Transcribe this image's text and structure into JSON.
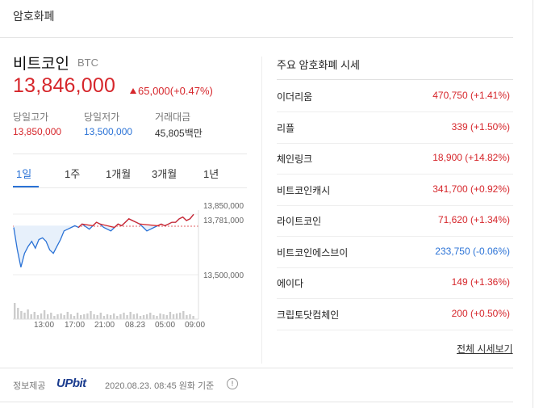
{
  "header": {
    "title": "암호화폐"
  },
  "coin": {
    "name": "비트코인",
    "symbol": "BTC",
    "price": "13,846,000",
    "change": "65,000(+0.47%)",
    "high_label": "당일고가",
    "high_value": "13,850,000",
    "low_label": "당일저가",
    "low_value": "13,500,000",
    "volume_label": "거래대금",
    "volume_value": "45,805백만"
  },
  "tabs": [
    "1일",
    "1주",
    "1개월",
    "3개월",
    "1년"
  ],
  "chart_data": {
    "type": "line",
    "y_ticks": [
      "13,850,000",
      "13,781,000",
      "13,500,000"
    ],
    "x_ticks": [
      "13:00",
      "17:00",
      "21:00",
      "08.23",
      "05:00",
      "09:00"
    ],
    "reference_line": 13781000,
    "ylim": [
      13450000,
      13880000
    ],
    "values": [
      13770000,
      13640000,
      13540000,
      13620000,
      13660000,
      13690000,
      13650000,
      13700000,
      13710000,
      13690000,
      13640000,
      13620000,
      13660000,
      13700000,
      13750000,
      13760000,
      13770000,
      13780000,
      13770000,
      13790000,
      13775000,
      13760000,
      13780000,
      13800000,
      13790000,
      13770000,
      13760000,
      13750000,
      13770000,
      13790000,
      13780000,
      13800000,
      13820000,
      13810000,
      13800000,
      13790000,
      13770000,
      13750000,
      13760000,
      13770000,
      13780000,
      13790000,
      13780000,
      13790000,
      13800000,
      13800000,
      13820000,
      13830000,
      13810000,
      13820000,
      13846000
    ]
  },
  "right": {
    "title": "주요 암호화폐 시세",
    "items": [
      {
        "name": "이더리움",
        "value": "470,750 (+1.41%)",
        "color": "#d6262b"
      },
      {
        "name": "리플",
        "value": "339 (+1.50%)",
        "color": "#d6262b"
      },
      {
        "name": "체인링크",
        "value": "18,900 (+14.82%)",
        "color": "#d6262b"
      },
      {
        "name": "비트코인캐시",
        "value": "341,700 (+0.92%)",
        "color": "#d6262b"
      },
      {
        "name": "라이트코인",
        "value": "71,620 (+1.34%)",
        "color": "#d6262b"
      },
      {
        "name": "비트코인에스브이",
        "value": "233,750 (-0.06%)",
        "color": "#2a72d6"
      },
      {
        "name": "에이다",
        "value": "149 (+1.36%)",
        "color": "#d6262b"
      },
      {
        "name": "크립토닷컴체인",
        "value": "200 (+0.50%)",
        "color": "#d6262b"
      }
    ],
    "more_label": "전체 시세보기"
  },
  "footer": {
    "source_label": "정보제공",
    "provider": "UPbit",
    "as_of": "2020.08.23. 08:45 원화 기준"
  }
}
